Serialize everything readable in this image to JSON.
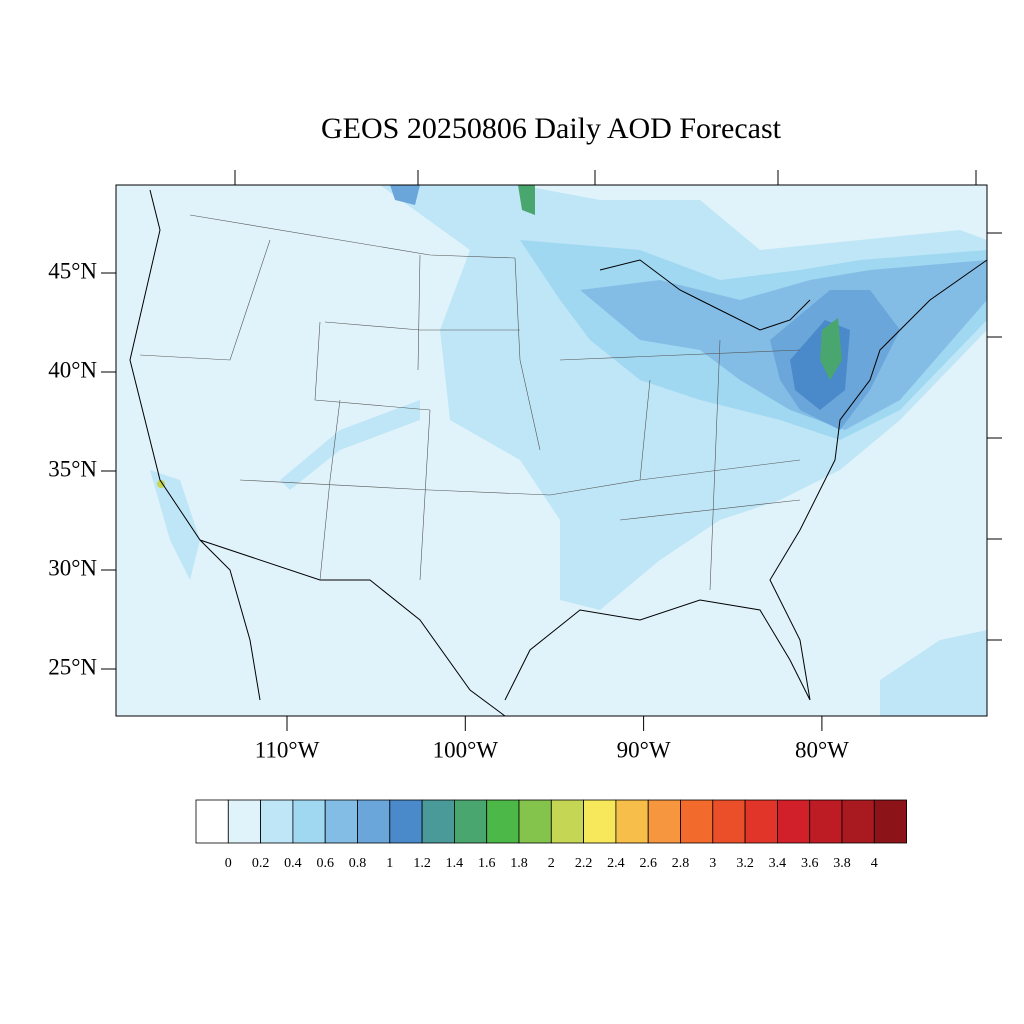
{
  "title": "GEOS 20250806 Daily AOD Forecast",
  "lat_ticks": [
    {
      "value": 45,
      "label": "45°N"
    },
    {
      "value": 40,
      "label": "40°N"
    },
    {
      "value": 35,
      "label": "35°N"
    },
    {
      "value": 30,
      "label": "30°N"
    },
    {
      "value": 25,
      "label": "25°N"
    }
  ],
  "lon_ticks": [
    {
      "value": -110,
      "label": "110°W"
    },
    {
      "value": -100,
      "label": "100°W"
    },
    {
      "value": -90,
      "label": "90°W"
    },
    {
      "value": -80,
      "label": "80°W"
    }
  ],
  "colorbar": {
    "levels": [
      0,
      0.2,
      0.4,
      0.6,
      0.8,
      1,
      1.2,
      1.4,
      1.6,
      1.8,
      2,
      2.2,
      2.4,
      2.6,
      2.8,
      3,
      3.2,
      3.4,
      3.6,
      3.8,
      4
    ],
    "colors": [
      "#ffffff",
      "#e0f3fb",
      "#bfe6f7",
      "#a0d8f2",
      "#83bde6",
      "#6aa6da",
      "#4a8acb",
      "#4a9a9a",
      "#48a66e",
      "#4cb848",
      "#84c44d",
      "#c4d654",
      "#f6e85a",
      "#f8be4a",
      "#f6963e",
      "#f26a2c",
      "#ea4f2a",
      "#e03528",
      "#d2202a",
      "#be1c24",
      "#a81a20",
      "#8c1419"
    ]
  }
}
